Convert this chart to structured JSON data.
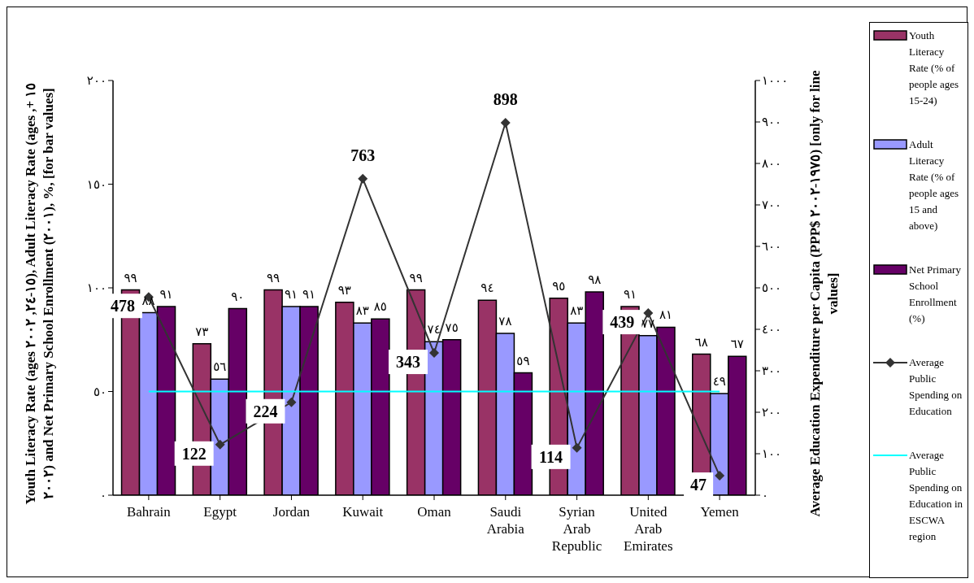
{
  "chart_data": {
    "type": "bar",
    "categories": [
      "Bahrain",
      "Egypt",
      "Jordan",
      "Kuwait",
      "Oman",
      "Saudi Arabia",
      "Syrian Arab Republic",
      "United Arab Emirates",
      "Yemen"
    ],
    "ylabel": "Youth Literacy Rate (ages ١٥-٢٤, ٢٠٠٢), Adult Literacy Rate (ages ١٥ +, ٢٠٠٢) and Net Primary School Enrollment (٢٠٠١), %,  [for bar values]",
    "y2label": "Average Education Expenditure per Capita (PPP$ ١٩٧٥-٢٠٠٢) [only for line values]",
    "series": [
      {
        "name": "Youth Literacy Rate (% of people ages 15-24)",
        "color": "#993366",
        "values": [
          99,
          73,
          99,
          93,
          99,
          94,
          95,
          91,
          68
        ],
        "value_labels": [
          "٩٩",
          "٧٣",
          "٩٩",
          "٩٣",
          "٩٩",
          "٩٤",
          "٩٥",
          "٩١",
          "٦٨"
        ]
      },
      {
        "name": "Adult Literacy Rate (% of people ages 15 and above)",
        "color": "#9999ff",
        "values": [
          88,
          56,
          91,
          83,
          74,
          78,
          83,
          77,
          49
        ],
        "value_labels": [
          "٨٨",
          "٥٦",
          "٩١",
          "٨٣",
          "٧٤",
          "٧٨",
          "٨٣",
          "٧٧",
          "٤٩"
        ]
      },
      {
        "name": "Net Primary School Enrollment (%)",
        "color": "#660066",
        "values": [
          91,
          90,
          91,
          85,
          75,
          59,
          98,
          81,
          67
        ],
        "value_labels": [
          "٩١",
          "٩٠",
          "٩١",
          "٨٥",
          "٧٥",
          "٥٩",
          "٩٨",
          "٨١",
          "٦٧"
        ]
      },
      {
        "name": "Average Public Spending on Education",
        "type": "line",
        "axis": "y2",
        "marker": "diamond",
        "color": "#333333",
        "values": [
          478,
          122,
          224,
          763,
          343,
          898,
          114,
          439,
          47
        ],
        "value_labels": [
          "478",
          "122",
          "224",
          "763",
          "343",
          "898",
          "114",
          "439",
          "47"
        ]
      },
      {
        "name": "Average Public Spending on Education in ESCWA region",
        "type": "line",
        "axis": "y2",
        "marker": "none",
        "color": "#00ffff",
        "values": [
          250,
          250,
          250,
          250,
          250,
          250,
          250,
          250,
          250
        ]
      }
    ],
    "ylim": [
      0,
      200
    ],
    "yticks": [
      {
        "value": 0,
        "label": "٠"
      },
      {
        "value": 50,
        "label": "٥٠"
      },
      {
        "value": 100,
        "label": "١٠٠"
      },
      {
        "value": 150,
        "label": "١٥٠"
      },
      {
        "value": 200,
        "label": "٢٠٠"
      }
    ],
    "y2lim": [
      0,
      1000
    ],
    "y2ticks": [
      {
        "value": 0,
        "label": "٠"
      },
      {
        "value": 100,
        "label": "١٠٠"
      },
      {
        "value": 200,
        "label": "٢٠٠"
      },
      {
        "value": 300,
        "label": "٣٠٠"
      },
      {
        "value": 400,
        "label": "٤٠٠"
      },
      {
        "value": 500,
        "label": "٥٠٠"
      },
      {
        "value": 600,
        "label": "٦٠٠"
      },
      {
        "value": 700,
        "label": "٧٠٠"
      },
      {
        "value": 800,
        "label": "٨٠٠"
      },
      {
        "value": 900,
        "label": "٩٠٠"
      },
      {
        "value": 1000,
        "label": "١٠٠٠"
      }
    ],
    "grid": false,
    "legend": "right"
  }
}
